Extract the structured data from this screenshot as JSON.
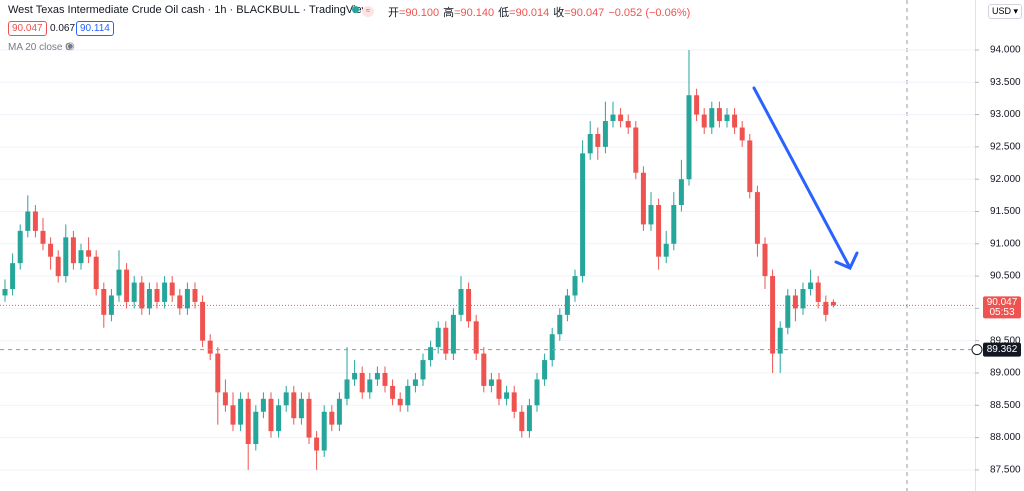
{
  "chart_data": {
    "type": "candlestick",
    "title": "West Texas Intermediate Crude Oil cash · 1h · BLACKBULL · TradingView",
    "ohlc_legend": [
      {
        "label": "开",
        "value": "=90.100"
      },
      {
        "label": "高",
        "value": "=90.140"
      },
      {
        "label": "低",
        "value": "=90.014"
      },
      {
        "label": "收",
        "value": "=90.047"
      }
    ],
    "change": "−0.052 (−0.06%)",
    "sell_price": "90.047",
    "spread": "0.067",
    "buy_price": "90.114",
    "indicator": "MA 20 close 0",
    "currency": "USD",
    "up_color": "#26a69a",
    "down_color": "#ef5350",
    "ylim": [
      87.173,
      94.774
    ],
    "yticks": [
      {
        "value": 87.5,
        "label": "87.500"
      },
      {
        "value": 88,
        "label": "88.000"
      },
      {
        "value": 88.5,
        "label": "88.500"
      },
      {
        "value": 89,
        "label": "89.000"
      },
      {
        "value": 89.5,
        "label": "89.500"
      },
      {
        "value": 90,
        "label": "90.000"
      },
      {
        "value": 90.5,
        "label": "90.500"
      },
      {
        "value": 91,
        "label": "91.000"
      },
      {
        "value": 91.5,
        "label": "91.500"
      },
      {
        "value": 92,
        "label": "92.000"
      },
      {
        "value": 92.5,
        "label": "92.500"
      },
      {
        "value": 93,
        "label": "93.000"
      },
      {
        "value": 93.5,
        "label": "93.500"
      },
      {
        "value": 94,
        "label": "94.000"
      }
    ],
    "last_price": 90.047,
    "countdown": "05:53",
    "crosshair_price": 89.362,
    "candles": [
      [
        90.2,
        90.45,
        90.1,
        90.3
      ],
      [
        90.3,
        90.85,
        90.2,
        90.7
      ],
      [
        90.7,
        91.3,
        90.6,
        91.2
      ],
      [
        91.2,
        91.75,
        91.1,
        91.5
      ],
      [
        91.5,
        91.6,
        91.1,
        91.2
      ],
      [
        91.2,
        91.4,
        90.9,
        91.0
      ],
      [
        91.0,
        91.1,
        90.6,
        90.8
      ],
      [
        90.8,
        90.9,
        90.4,
        90.5
      ],
      [
        90.5,
        91.3,
        90.4,
        91.1
      ],
      [
        91.1,
        91.2,
        90.6,
        90.7
      ],
      [
        90.7,
        91.0,
        90.6,
        90.9
      ],
      [
        90.9,
        91.1,
        90.7,
        90.8
      ],
      [
        90.8,
        90.9,
        90.2,
        90.3
      ],
      [
        90.3,
        90.4,
        89.7,
        89.9
      ],
      [
        89.9,
        90.3,
        89.8,
        90.2
      ],
      [
        90.2,
        90.9,
        90.1,
        90.6
      ],
      [
        90.6,
        90.7,
        90.0,
        90.1
      ],
      [
        90.1,
        90.5,
        90.0,
        90.4
      ],
      [
        90.4,
        90.5,
        89.9,
        90.0
      ],
      [
        90.0,
        90.4,
        89.9,
        90.3
      ],
      [
        90.3,
        90.4,
        90.0,
        90.1
      ],
      [
        90.1,
        90.5,
        90.0,
        90.4
      ],
      [
        90.4,
        90.5,
        90.1,
        90.2
      ],
      [
        90.2,
        90.3,
        89.9,
        90.0
      ],
      [
        90.0,
        90.4,
        89.9,
        90.3
      ],
      [
        90.3,
        90.4,
        90.0,
        90.1
      ],
      [
        90.1,
        90.2,
        89.4,
        89.5
      ],
      [
        89.5,
        89.6,
        89.2,
        89.3
      ],
      [
        89.3,
        89.4,
        88.2,
        88.7
      ],
      [
        88.7,
        88.9,
        88.4,
        88.5
      ],
      [
        88.5,
        88.7,
        88.1,
        88.2
      ],
      [
        88.2,
        88.7,
        88.1,
        88.6
      ],
      [
        88.6,
        88.7,
        87.5,
        87.9
      ],
      [
        87.9,
        88.5,
        87.8,
        88.4
      ],
      [
        88.4,
        88.7,
        88.3,
        88.6
      ],
      [
        88.6,
        88.7,
        88.0,
        88.1
      ],
      [
        88.1,
        88.6,
        88.0,
        88.5
      ],
      [
        88.5,
        88.8,
        88.4,
        88.7
      ],
      [
        88.7,
        88.8,
        88.2,
        88.3
      ],
      [
        88.3,
        88.7,
        88.2,
        88.6
      ],
      [
        88.6,
        88.7,
        87.9,
        88.0
      ],
      [
        88.0,
        88.1,
        87.5,
        87.8
      ],
      [
        87.8,
        88.5,
        87.7,
        88.4
      ],
      [
        88.4,
        88.5,
        88.1,
        88.2
      ],
      [
        88.2,
        88.7,
        88.1,
        88.6
      ],
      [
        88.6,
        89.4,
        88.5,
        88.9
      ],
      [
        88.9,
        89.2,
        88.8,
        89.0
      ],
      [
        89.0,
        89.1,
        88.6,
        88.7
      ],
      [
        88.7,
        89.0,
        88.6,
        88.9
      ],
      [
        88.9,
        89.1,
        88.8,
        89.0
      ],
      [
        89.0,
        89.1,
        88.7,
        88.8
      ],
      [
        88.8,
        88.9,
        88.5,
        88.6
      ],
      [
        88.6,
        88.7,
        88.4,
        88.5
      ],
      [
        88.5,
        88.9,
        88.4,
        88.8
      ],
      [
        88.8,
        89.0,
        88.7,
        88.9
      ],
      [
        88.9,
        89.3,
        88.8,
        89.2
      ],
      [
        89.2,
        89.5,
        89.1,
        89.4
      ],
      [
        89.4,
        89.8,
        89.3,
        89.7
      ],
      [
        89.7,
        89.8,
        89.2,
        89.3
      ],
      [
        89.3,
        90.0,
        89.2,
        89.9
      ],
      [
        89.9,
        90.5,
        89.8,
        90.3
      ],
      [
        90.3,
        90.4,
        89.7,
        89.8
      ],
      [
        89.8,
        89.9,
        89.2,
        89.3
      ],
      [
        89.3,
        89.4,
        88.7,
        88.8
      ],
      [
        88.8,
        89.0,
        88.7,
        88.9
      ],
      [
        88.9,
        89.0,
        88.5,
        88.6
      ],
      [
        88.6,
        88.8,
        88.5,
        88.7
      ],
      [
        88.7,
        88.8,
        88.3,
        88.4
      ],
      [
        88.4,
        88.5,
        88.0,
        88.1
      ],
      [
        88.1,
        88.6,
        88.0,
        88.5
      ],
      [
        88.5,
        89.0,
        88.4,
        88.9
      ],
      [
        88.9,
        89.3,
        88.8,
        89.2
      ],
      [
        89.2,
        89.7,
        89.1,
        89.6
      ],
      [
        89.6,
        90.0,
        89.5,
        89.9
      ],
      [
        89.9,
        90.3,
        89.8,
        90.2
      ],
      [
        90.2,
        90.6,
        90.1,
        90.5
      ],
      [
        90.5,
        92.6,
        90.4,
        92.4
      ],
      [
        92.4,
        92.9,
        92.3,
        92.7
      ],
      [
        92.7,
        92.8,
        92.3,
        92.5
      ],
      [
        92.5,
        93.2,
        92.4,
        92.9
      ],
      [
        92.9,
        93.2,
        92.8,
        93.0
      ],
      [
        93.0,
        93.1,
        92.8,
        92.9
      ],
      [
        92.9,
        93.0,
        92.7,
        92.8
      ],
      [
        92.8,
        92.9,
        92.0,
        92.1
      ],
      [
        92.1,
        92.2,
        91.2,
        91.3
      ],
      [
        91.3,
        91.8,
        91.2,
        91.6
      ],
      [
        91.6,
        91.7,
        90.6,
        90.8
      ],
      [
        90.8,
        91.2,
        90.7,
        91.0
      ],
      [
        91.0,
        91.8,
        90.9,
        91.6
      ],
      [
        91.6,
        92.3,
        91.5,
        92.0
      ],
      [
        92.0,
        94.0,
        91.9,
        93.3
      ],
      [
        93.3,
        93.4,
        92.9,
        93.0
      ],
      [
        93.0,
        93.1,
        92.7,
        92.8
      ],
      [
        92.8,
        93.2,
        92.7,
        93.1
      ],
      [
        93.1,
        93.2,
        92.8,
        92.9
      ],
      [
        92.9,
        93.1,
        92.8,
        93.0
      ],
      [
        93.0,
        93.1,
        92.7,
        92.8
      ],
      [
        92.8,
        92.9,
        92.5,
        92.6
      ],
      [
        92.6,
        92.7,
        91.7,
        91.8
      ],
      [
        91.8,
        91.9,
        90.8,
        91.0
      ],
      [
        91.0,
        91.1,
        90.3,
        90.5
      ],
      [
        90.5,
        90.6,
        89.0,
        89.3
      ],
      [
        89.3,
        89.8,
        89.0,
        89.7
      ],
      [
        89.7,
        90.3,
        89.6,
        90.2
      ],
      [
        90.2,
        90.3,
        89.8,
        90.0
      ],
      [
        90.0,
        90.4,
        89.9,
        90.3
      ],
      [
        90.3,
        90.6,
        90.2,
        90.4
      ],
      [
        90.4,
        90.5,
        90.0,
        90.1
      ],
      [
        90.1,
        90.2,
        89.8,
        89.9
      ],
      [
        90.1,
        90.14,
        90.014,
        90.047
      ]
    ]
  }
}
